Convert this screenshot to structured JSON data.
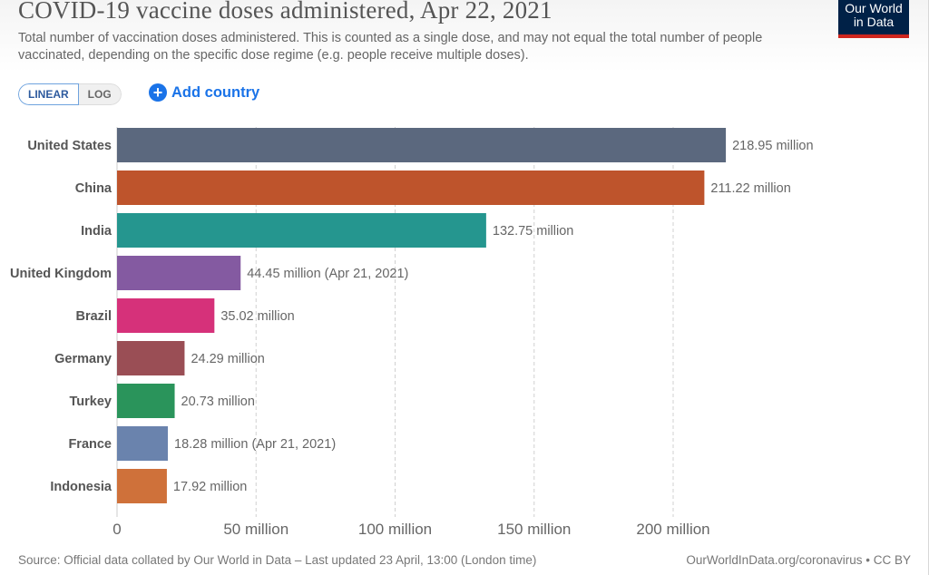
{
  "header": {
    "title": "COVID-19 vaccine doses administered, Apr 22, 2021",
    "subtitle": "Total number of vaccination doses administered. This is counted as a single dose, and may not equal the total number of people vaccinated, depending on the specific dose regime (e.g. people receive multiple doses).",
    "logo_line1": "Our World",
    "logo_line2": "in Data",
    "logo_bg_color": "#002147",
    "logo_accent_color": "#ce261e"
  },
  "controls": {
    "linear_label": "LINEAR",
    "log_label": "LOG",
    "selected_scale": "LINEAR",
    "add_country_label": "Add country",
    "add_country_icon": "plus-circle-icon"
  },
  "chart_data": {
    "type": "bar",
    "orientation": "horizontal",
    "title": "COVID-19 vaccine doses administered, Apr 22, 2021",
    "xlabel": "",
    "ylabel": "",
    "unit": "million",
    "xlim": [
      0,
      220
    ],
    "grid": true,
    "x_ticks": [
      0,
      50,
      100,
      150,
      200
    ],
    "x_tick_labels": [
      "0",
      "50 million",
      "100 million",
      "150 million",
      "200 million"
    ],
    "categories": [
      "United States",
      "China",
      "India",
      "United Kingdom",
      "Brazil",
      "Germany",
      "Turkey",
      "France",
      "Indonesia"
    ],
    "values": [
      218.95,
      211.22,
      132.75,
      44.45,
      35.02,
      24.29,
      20.73,
      18.28,
      17.92
    ],
    "value_labels": [
      "218.95 million",
      "211.22 million",
      "132.75 million",
      "44.45 million (Apr 21, 2021)",
      "35.02 million",
      "24.29 million",
      "20.73 million",
      "18.28 million (Apr 21, 2021)",
      "17.92 million"
    ],
    "colors": [
      "#5b687e",
      "#be542c",
      "#25968f",
      "#845aa1",
      "#d6317a",
      "#9a4e55",
      "#2a945b",
      "#6a83ad",
      "#cf713a"
    ]
  },
  "footer": {
    "source": "Source: Official data collated by Our World in Data – Last updated 23 April, 13:00 (London time)",
    "link": "OurWorldInData.org/coronavirus • CC BY"
  }
}
